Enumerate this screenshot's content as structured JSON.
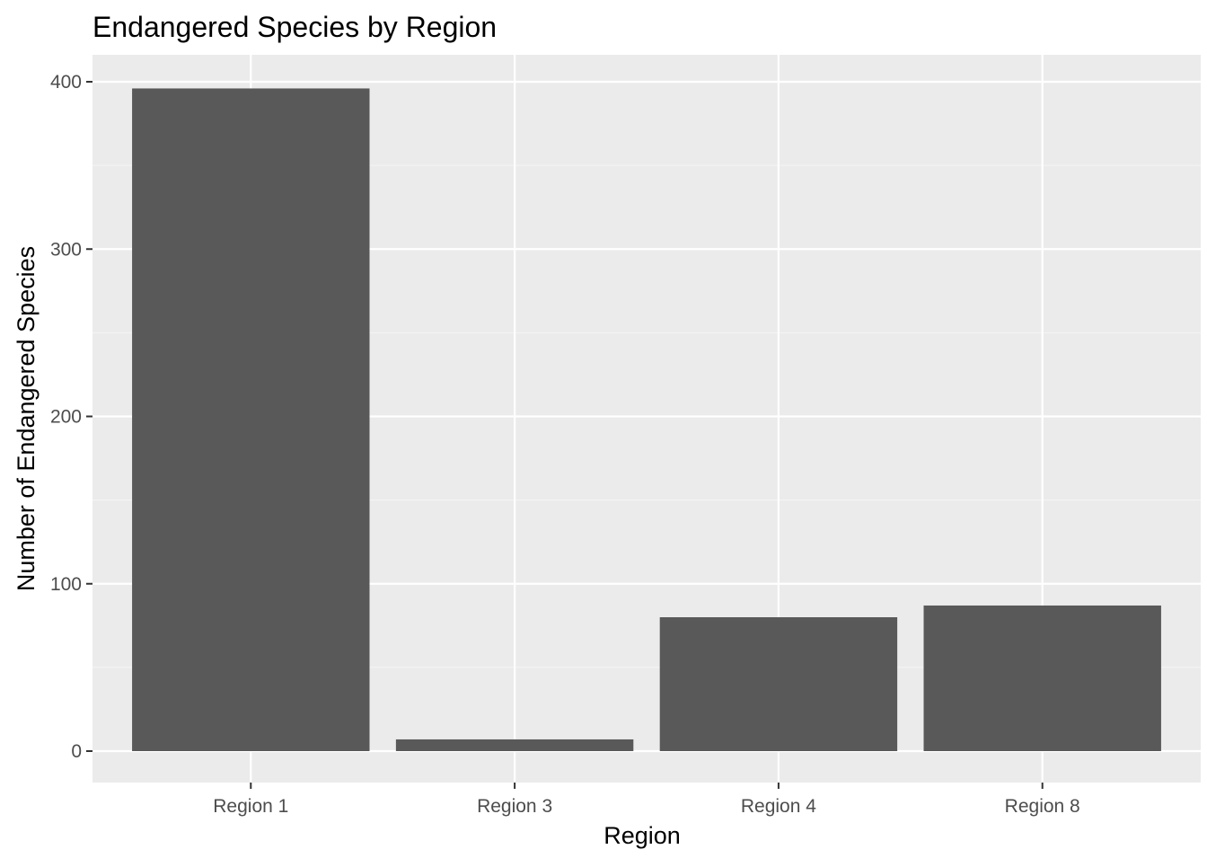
{
  "chart_data": {
    "type": "bar",
    "title": "Endangered Species by Region",
    "xlabel": "Region",
    "ylabel": "Number of Endangered Species",
    "categories": [
      "Region 1",
      "Region 3",
      "Region 4",
      "Region 8"
    ],
    "values": [
      396,
      7,
      80,
      87
    ],
    "ylim": [
      0,
      416
    ],
    "yticks": [
      0,
      100,
      200,
      300,
      400
    ],
    "grid": true,
    "legend": "none",
    "colors": {
      "bar": "#595959",
      "panel_background": "#ebebeb",
      "grid_major": "#ffffff",
      "grid_minor": "#f5f5f5",
      "tick_label": "#4d4d4d",
      "tick_mark": "#333333"
    }
  }
}
